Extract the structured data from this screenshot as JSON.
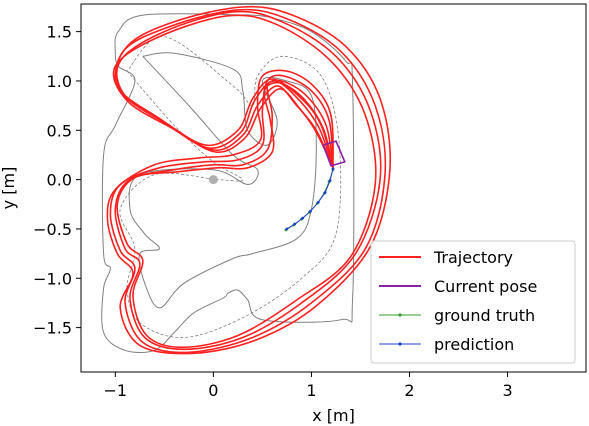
{
  "chart_data": {
    "type": "line",
    "xlabel": "x [m]",
    "ylabel": "y [m]",
    "xlim": [
      -1.35,
      3.8
    ],
    "ylim": [
      -1.95,
      1.78
    ],
    "xticks": [
      {
        "value": -1,
        "label": "−1"
      },
      {
        "value": 0,
        "label": "0"
      },
      {
        "value": 1,
        "label": "1"
      },
      {
        "value": 2,
        "label": "2"
      },
      {
        "value": 3,
        "label": "3"
      }
    ],
    "yticks": [
      {
        "value": -1.5,
        "label": "−1.5"
      },
      {
        "value": -1.0,
        "label": "−1.0"
      },
      {
        "value": -0.5,
        "label": "−0.5"
      },
      {
        "value": 0.0,
        "label": "0.0"
      },
      {
        "value": 0.5,
        "label": "0.5"
      },
      {
        "value": 1.0,
        "label": "1.0"
      },
      {
        "value": 1.5,
        "label": "1.5"
      }
    ],
    "grid": false,
    "legend_position": "lower right",
    "legend": [
      {
        "label": "Trajectory",
        "color": "#ff2020",
        "style": "line"
      },
      {
        "label": "Current pose",
        "color": "#8a1fa8",
        "style": "line"
      },
      {
        "label": "ground truth",
        "color": "#2ca02c",
        "style": "marker-line"
      },
      {
        "label": "prediction",
        "color": "#1f3fd0",
        "style": "marker-line"
      }
    ],
    "track_outer": [
      [
        0.35,
        1.67
      ],
      [
        -0.7,
        1.67
      ],
      [
        -0.97,
        1.5
      ],
      [
        -1.0,
        1.3
      ],
      [
        -0.97,
        1.15
      ],
      [
        -0.8,
        1.0
      ],
      [
        -1.0,
        0.55
      ],
      [
        -1.12,
        0.25
      ],
      [
        -1.12,
        -0.75
      ],
      [
        -1.05,
        -0.9
      ],
      [
        -1.12,
        -1.1
      ],
      [
        -1.12,
        -1.55
      ],
      [
        -0.9,
        -1.73
      ],
      [
        -0.6,
        -1.73
      ],
      [
        -0.4,
        -1.55
      ],
      [
        -0.2,
        -1.35
      ],
      [
        0.1,
        -1.2
      ],
      [
        0.15,
        -1.15
      ],
      [
        0.25,
        -1.12
      ],
      [
        0.35,
        -1.22
      ],
      [
        0.5,
        -1.42
      ],
      [
        1.3,
        -1.42
      ],
      [
        1.42,
        -1.2
      ],
      [
        1.42,
        0.95
      ],
      [
        1.35,
        1.2
      ],
      [
        1.0,
        1.5
      ],
      [
        0.6,
        1.64
      ],
      [
        0.35,
        1.67
      ]
    ],
    "track_inner": [
      [
        -0.72,
        1.25
      ],
      [
        -0.25,
        0.75
      ],
      [
        0.2,
        0.25
      ],
      [
        0.45,
        0.1
      ],
      [
        0.35,
        -0.05
      ],
      [
        0.0,
        0.1
      ],
      [
        -0.75,
        0.05
      ],
      [
        -0.85,
        -0.3
      ],
      [
        -0.7,
        -0.55
      ],
      [
        -0.55,
        -0.7
      ],
      [
        -0.75,
        -0.75
      ],
      [
        -0.7,
        -1.05
      ],
      [
        -0.55,
        -1.3
      ],
      [
        -0.3,
        -1.05
      ],
      [
        0.2,
        -0.8
      ],
      [
        0.4,
        -0.75
      ],
      [
        0.85,
        -0.6
      ],
      [
        1.0,
        -0.3
      ],
      [
        1.05,
        0.3
      ],
      [
        1.0,
        0.85
      ],
      [
        0.75,
        1.0
      ],
      [
        0.5,
        1.0
      ],
      [
        0.65,
        0.6
      ],
      [
        0.55,
        0.35
      ],
      [
        0.35,
        0.5
      ],
      [
        0.3,
        0.9
      ],
      [
        0.2,
        1.12
      ],
      [
        -0.4,
        1.28
      ],
      [
        -0.72,
        1.25
      ]
    ],
    "track_centerline": [
      [
        -0.88,
        1.1
      ],
      [
        -0.4,
        0.55
      ],
      [
        0.0,
        0.18
      ],
      [
        0.3,
        0.0
      ],
      [
        0.05,
        0.0
      ],
      [
        -0.6,
        0.05
      ],
      [
        -0.95,
        -0.3
      ],
      [
        -0.8,
        -0.7
      ],
      [
        -0.88,
        -1.1
      ],
      [
        -0.75,
        -1.45
      ],
      [
        -0.3,
        -1.6
      ],
      [
        0.3,
        -1.4
      ],
      [
        0.9,
        -1.0
      ],
      [
        1.25,
        -0.55
      ],
      [
        1.28,
        0.4
      ],
      [
        1.1,
        1.05
      ],
      [
        0.7,
        1.25
      ],
      [
        0.45,
        1.05
      ],
      [
        0.4,
        0.75
      ],
      [
        0.2,
        0.95
      ],
      [
        -0.5,
        1.45
      ],
      [
        -0.88,
        1.1
      ]
    ],
    "trajectory_laps": [
      [
        [
          1.22,
          0.12
        ],
        [
          1.15,
          0.55
        ],
        [
          0.95,
          0.85
        ],
        [
          0.7,
          1.0
        ],
        [
          0.55,
          0.95
        ],
        [
          0.6,
          0.65
        ],
        [
          0.55,
          0.3
        ],
        [
          0.3,
          0.15
        ],
        [
          0.0,
          0.15
        ],
        [
          -0.4,
          0.1
        ],
        [
          -0.85,
          0.0
        ],
        [
          -1.0,
          -0.3
        ],
        [
          -0.9,
          -0.7
        ],
        [
          -0.75,
          -0.85
        ],
        [
          -0.85,
          -1.2
        ],
        [
          -0.7,
          -1.6
        ],
        [
          -0.3,
          -1.72
        ],
        [
          0.3,
          -1.6
        ],
        [
          0.9,
          -1.25
        ],
        [
          1.45,
          -0.75
        ],
        [
          1.7,
          0.0
        ],
        [
          1.6,
          0.7
        ],
        [
          1.25,
          1.25
        ],
        [
          0.7,
          1.6
        ],
        [
          0.2,
          1.7
        ],
        [
          -0.5,
          1.5
        ],
        [
          -0.95,
          1.2
        ],
        [
          -0.9,
          0.85
        ],
        [
          -0.45,
          0.55
        ],
        [
          0.0,
          0.3
        ],
        [
          0.3,
          0.45
        ],
        [
          0.45,
          0.75
        ],
        [
          0.65,
          0.95
        ],
        [
          0.85,
          0.75
        ],
        [
          1.05,
          0.5
        ],
        [
          1.22,
          0.12
        ]
      ],
      [
        [
          1.22,
          0.12
        ],
        [
          1.18,
          0.6
        ],
        [
          1.0,
          0.9
        ],
        [
          0.72,
          1.05
        ],
        [
          0.55,
          1.0
        ],
        [
          0.5,
          0.7
        ],
        [
          0.5,
          0.35
        ],
        [
          0.25,
          0.2
        ],
        [
          -0.1,
          0.18
        ],
        [
          -0.55,
          0.12
        ],
        [
          -0.95,
          -0.05
        ],
        [
          -1.05,
          -0.35
        ],
        [
          -0.95,
          -0.72
        ],
        [
          -0.8,
          -0.9
        ],
        [
          -0.9,
          -1.25
        ],
        [
          -0.72,
          -1.65
        ],
        [
          -0.25,
          -1.75
        ],
        [
          0.4,
          -1.6
        ],
        [
          1.0,
          -1.25
        ],
        [
          1.55,
          -0.7
        ],
        [
          1.75,
          0.05
        ],
        [
          1.65,
          0.75
        ],
        [
          1.3,
          1.3
        ],
        [
          0.75,
          1.63
        ],
        [
          0.25,
          1.72
        ],
        [
          -0.45,
          1.55
        ],
        [
          -0.92,
          1.3
        ],
        [
          -0.95,
          0.9
        ],
        [
          -0.5,
          0.58
        ],
        [
          -0.05,
          0.32
        ],
        [
          0.28,
          0.48
        ],
        [
          0.42,
          0.8
        ],
        [
          0.62,
          1.0
        ],
        [
          0.88,
          0.8
        ],
        [
          1.08,
          0.52
        ],
        [
          1.22,
          0.12
        ]
      ],
      [
        [
          1.22,
          0.12
        ],
        [
          1.12,
          0.52
        ],
        [
          0.92,
          0.82
        ],
        [
          0.68,
          0.98
        ],
        [
          0.52,
          0.9
        ],
        [
          0.58,
          0.6
        ],
        [
          0.6,
          0.28
        ],
        [
          0.35,
          0.12
        ],
        [
          0.05,
          0.12
        ],
        [
          -0.35,
          0.08
        ],
        [
          -0.8,
          0.02
        ],
        [
          -0.98,
          -0.25
        ],
        [
          -0.88,
          -0.65
        ],
        [
          -0.72,
          -0.82
        ],
        [
          -0.82,
          -1.18
        ],
        [
          -0.68,
          -1.58
        ],
        [
          -0.32,
          -1.7
        ],
        [
          0.25,
          -1.58
        ],
        [
          0.85,
          -1.22
        ],
        [
          1.4,
          -0.78
        ],
        [
          1.65,
          -0.05
        ],
        [
          1.55,
          0.65
        ],
        [
          1.2,
          1.2
        ],
        [
          0.65,
          1.57
        ],
        [
          0.15,
          1.66
        ],
        [
          -0.55,
          1.45
        ],
        [
          -1.0,
          1.15
        ],
        [
          -0.88,
          0.8
        ],
        [
          -0.42,
          0.52
        ],
        [
          0.02,
          0.28
        ],
        [
          0.32,
          0.42
        ],
        [
          0.48,
          0.72
        ],
        [
          0.68,
          0.92
        ],
        [
          0.88,
          0.72
        ],
        [
          1.05,
          0.48
        ],
        [
          1.22,
          0.12
        ]
      ],
      [
        [
          1.22,
          0.12
        ],
        [
          1.2,
          0.65
        ],
        [
          1.02,
          0.95
        ],
        [
          0.75,
          1.1
        ],
        [
          0.5,
          1.05
        ],
        [
          0.45,
          0.75
        ],
        [
          0.48,
          0.4
        ],
        [
          0.2,
          0.25
        ],
        [
          -0.15,
          0.22
        ],
        [
          -0.6,
          0.15
        ],
        [
          -1.0,
          -0.1
        ],
        [
          -1.08,
          -0.4
        ],
        [
          -0.98,
          -0.75
        ],
        [
          -0.82,
          -0.95
        ],
        [
          -0.95,
          -1.3
        ],
        [
          -0.75,
          -1.68
        ],
        [
          -0.2,
          -1.76
        ],
        [
          0.45,
          -1.62
        ],
        [
          1.05,
          -1.28
        ],
        [
          1.6,
          -0.68
        ],
        [
          1.8,
          0.1
        ],
        [
          1.7,
          0.82
        ],
        [
          1.35,
          1.35
        ],
        [
          0.8,
          1.67
        ],
        [
          0.3,
          1.75
        ],
        [
          -0.4,
          1.6
        ],
        [
          -0.88,
          1.35
        ],
        [
          -0.98,
          0.95
        ],
        [
          -0.55,
          0.62
        ],
        [
          -0.08,
          0.35
        ],
        [
          0.25,
          0.5
        ],
        [
          0.4,
          0.82
        ],
        [
          0.6,
          1.02
        ],
        [
          0.9,
          0.82
        ],
        [
          1.1,
          0.55
        ],
        [
          1.22,
          0.12
        ]
      ]
    ],
    "current_pose": [
      [
        1.12,
        0.35
      ],
      [
        1.25,
        0.39
      ],
      [
        1.34,
        0.18
      ],
      [
        1.2,
        0.14
      ]
    ],
    "ground_truth": [
      [
        1.22,
        0.1
      ],
      [
        1.18,
        -0.02
      ],
      [
        1.13,
        -0.14
      ],
      [
        1.06,
        -0.24
      ],
      [
        0.98,
        -0.33
      ],
      [
        0.9,
        -0.4
      ],
      [
        0.82,
        -0.46
      ],
      [
        0.74,
        -0.51
      ]
    ],
    "prediction": [
      [
        1.22,
        0.11
      ],
      [
        1.19,
        -0.01
      ],
      [
        1.14,
        -0.13
      ],
      [
        1.07,
        -0.23
      ],
      [
        0.99,
        -0.32
      ],
      [
        0.91,
        -0.39
      ],
      [
        0.83,
        -0.45
      ],
      [
        0.75,
        -0.5
      ]
    ],
    "origin_marker": [
      0,
      0
    ]
  }
}
